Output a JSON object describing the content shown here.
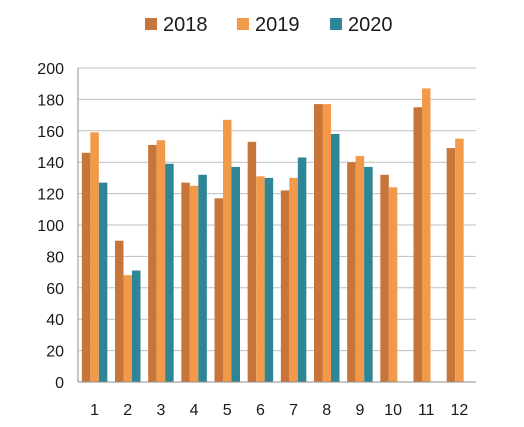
{
  "chart_data": {
    "type": "bar",
    "title": "",
    "xlabel": "",
    "ylabel": "",
    "categories": [
      "1",
      "2",
      "3",
      "4",
      "5",
      "6",
      "7",
      "8",
      "9",
      "10",
      "11",
      "12"
    ],
    "series": [
      {
        "name": "2018",
        "color": "#C8753A",
        "values": [
          146,
          90,
          151,
          127,
          117,
          153,
          122,
          177,
          140,
          132,
          175,
          149
        ]
      },
      {
        "name": "2019",
        "color": "#F39A4A",
        "values": [
          159,
          68,
          154,
          125,
          167,
          131,
          130,
          177,
          144,
          124,
          187,
          155
        ]
      },
      {
        "name": "2020",
        "color": "#2E8595",
        "values": [
          127,
          71,
          139,
          132,
          137,
          130,
          143,
          158,
          137,
          null,
          null,
          null
        ]
      }
    ],
    "ylim": [
      0,
      200
    ],
    "yticks": [
      0,
      20,
      40,
      60,
      80,
      100,
      120,
      140,
      160,
      180,
      200
    ],
    "grid": true,
    "legend_position": "top-center"
  }
}
